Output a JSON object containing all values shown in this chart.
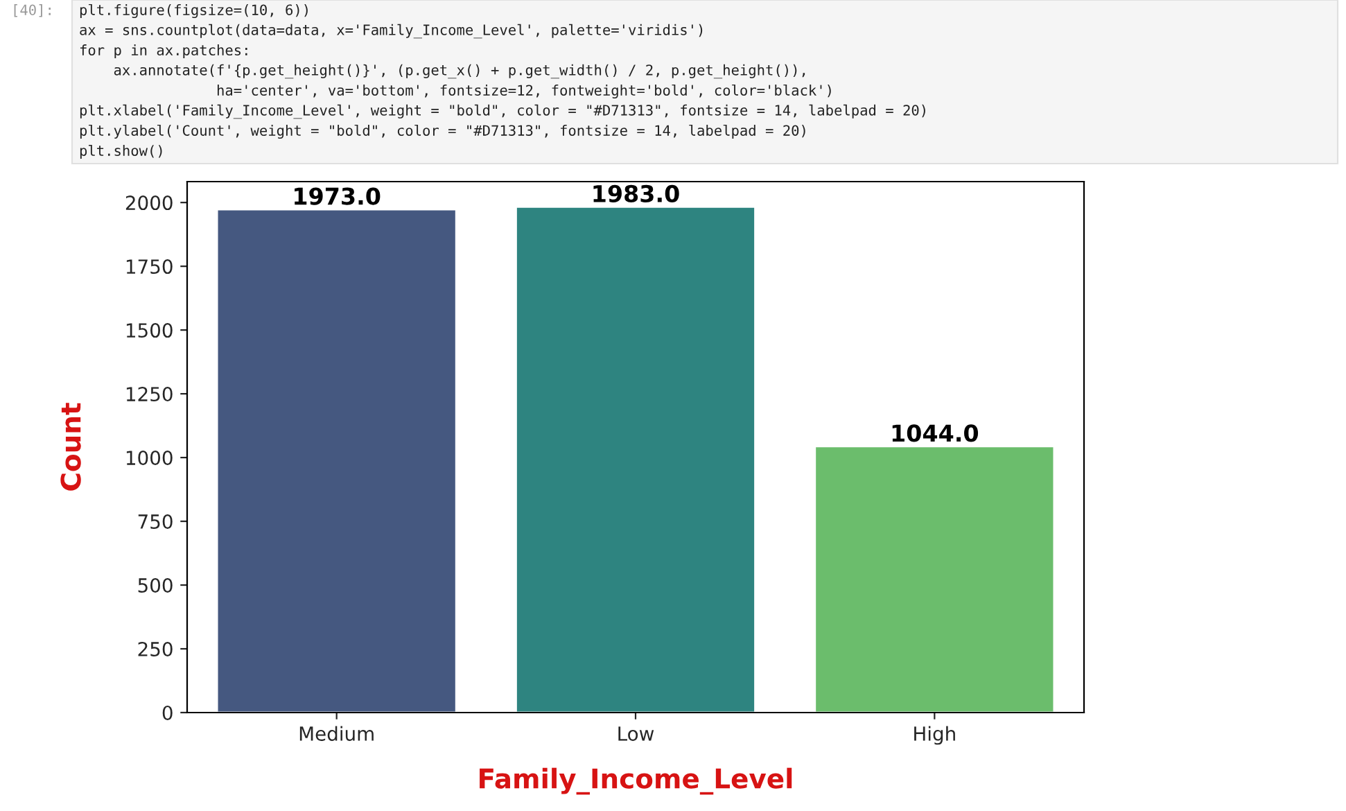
{
  "chart_data": {
    "type": "bar",
    "categories": [
      "Medium",
      "Low",
      "High"
    ],
    "values": [
      1973,
      1983,
      1044
    ],
    "colors": [
      "#455880",
      "#2e8480",
      "#6bbd6c"
    ],
    "value_labels": [
      "1973.0",
      "1983.0",
      "1044.0"
    ],
    "xlabel": "Family_Income_Level",
    "ylabel": "Count",
    "ylim": [
      0,
      2082
    ],
    "yticks": [
      0,
      250,
      500,
      750,
      1000,
      1250,
      1500,
      1750,
      2000
    ],
    "grid": false,
    "annotations": [
      "[40]:",
      "plt.figure(figsize=(10, 6))",
      "ax = sns.countplot(data=data, x='Family_Income_Level', palette='viridis')",
      "for p in ax.patches:",
      "    ax.annotate(f'{p.get_height()}', (p.get_x() + p.get_width() / 2, p.get_height()),",
      "                ha='center', va='bottom', fontsize=12, fontweight='bold', color='black')",
      "plt.xlabel('Family_Income_Level', weight = \"bold\", color = \"#D71313\", fontsize = 14, labelpad = 20)",
      "plt.ylabel('Count', weight = \"bold\", color = \"#D71313\", fontsize = 14, labelpad = 20)",
      "plt.show()"
    ]
  }
}
